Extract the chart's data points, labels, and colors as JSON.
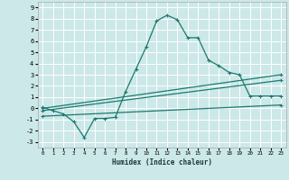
{
  "xlabel": "Humidex (Indice chaleur)",
  "bg_color": "#cce8e8",
  "grid_color": "#ffffff",
  "line_color": "#1a7a6e",
  "xlim": [
    -0.5,
    23.5
  ],
  "ylim": [
    -3.5,
    9.5
  ],
  "xticks": [
    0,
    1,
    2,
    3,
    4,
    5,
    6,
    7,
    8,
    9,
    10,
    11,
    12,
    13,
    14,
    15,
    16,
    17,
    18,
    19,
    20,
    21,
    22,
    23
  ],
  "yticks": [
    -3,
    -2,
    -1,
    0,
    1,
    2,
    3,
    4,
    5,
    6,
    7,
    8,
    9
  ],
  "line1_x": [
    0,
    1,
    2,
    3,
    4,
    5,
    6,
    7,
    8,
    9,
    10,
    11,
    12,
    13,
    14,
    15,
    16,
    17,
    18,
    19,
    20,
    21,
    22,
    23
  ],
  "line1_y": [
    0.1,
    -0.2,
    -0.5,
    -1.2,
    -2.6,
    -0.9,
    -0.9,
    -0.8,
    1.5,
    3.5,
    5.5,
    7.8,
    8.3,
    7.9,
    6.3,
    6.3,
    4.3,
    3.8,
    3.2,
    3.0,
    1.1,
    1.1,
    1.1,
    1.1
  ],
  "line2_x": [
    0,
    23
  ],
  "line2_y": [
    0.0,
    3.0
  ],
  "line3_x": [
    0,
    23
  ],
  "line3_y": [
    -0.2,
    2.5
  ],
  "line4_x": [
    0,
    23
  ],
  "line4_y": [
    -0.7,
    0.3
  ],
  "marker": "+"
}
